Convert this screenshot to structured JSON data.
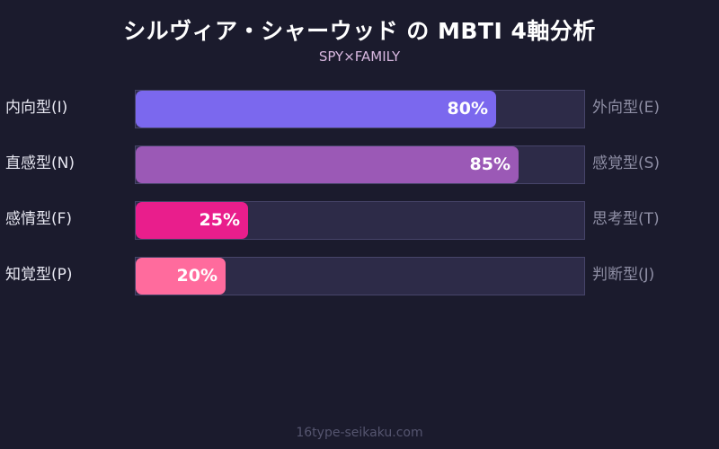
{
  "chart_data": {
    "type": "bar",
    "orientation": "horizontal",
    "title": "シルヴィア・シャーウッド の MBTI 4軸分析",
    "subtitle": "SPY×FAMILY",
    "xlim": [
      0,
      100
    ],
    "grid": false,
    "legend": "none",
    "categories": [
      "内向型(I) / 外向型(E)",
      "直感型(N) / 感覚型(S)",
      "感情型(F) / 思考型(T)",
      "知覚型(P) / 判断型(J)"
    ],
    "values": [
      80,
      85,
      25,
      20
    ],
    "axes": [
      {
        "left_label": "内向型(I)",
        "right_label": "外向型(E)",
        "value": 80,
        "display": "80%",
        "color": "#7b68ee"
      },
      {
        "left_label": "直感型(N)",
        "right_label": "感覚型(S)",
        "value": 85,
        "display": "85%",
        "color": "#9b59b6"
      },
      {
        "left_label": "感情型(F)",
        "right_label": "思考型(T)",
        "value": 25,
        "display": "25%",
        "color": "#e91e8c"
      },
      {
        "left_label": "知覚型(P)",
        "right_label": "判断型(J)",
        "value": 20,
        "display": "20%",
        "color": "#ff6b9d"
      }
    ]
  },
  "footer": "16type-seikaku.com",
  "colors": {
    "background": "#1b1b2d",
    "track": "#2d2b48",
    "track_border": "#47456a"
  }
}
